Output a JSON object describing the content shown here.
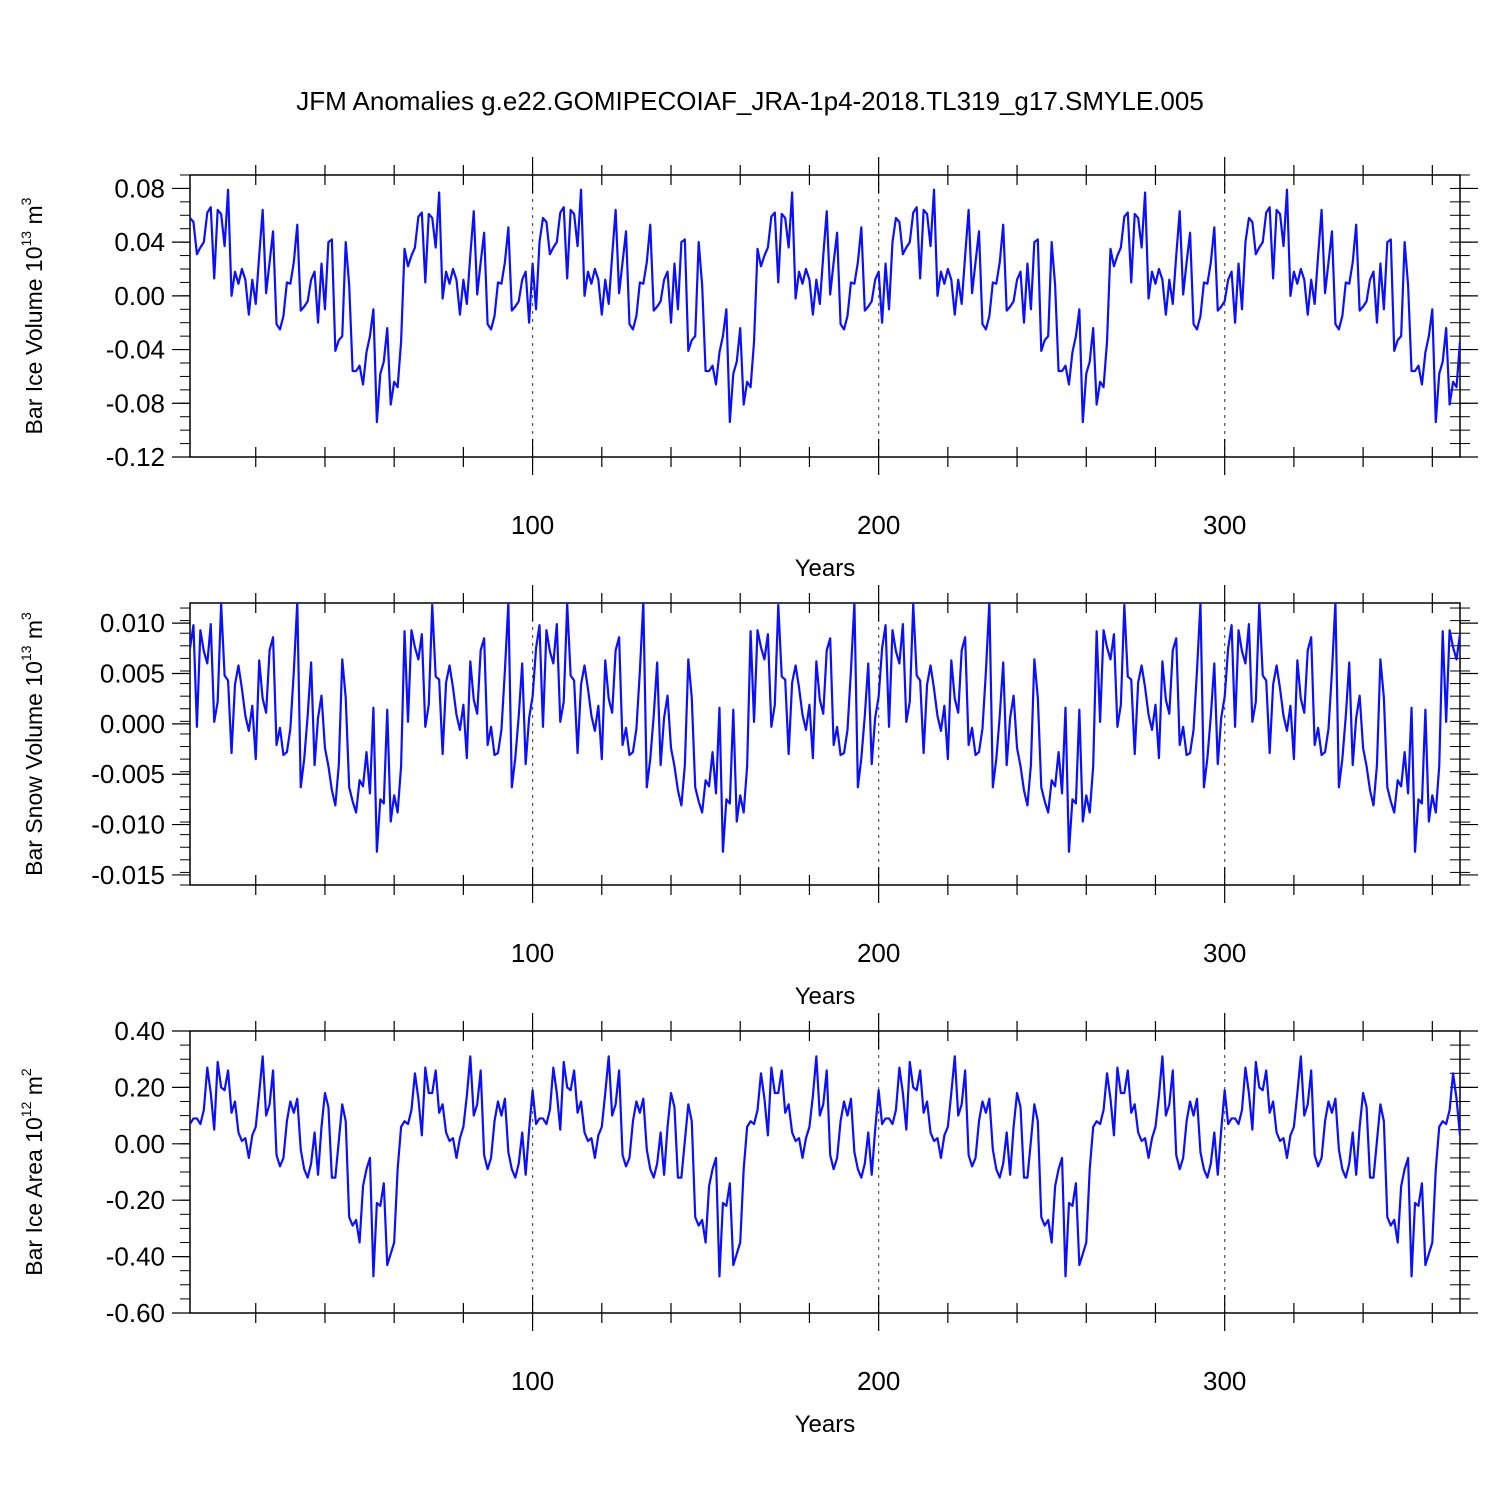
{
  "title": "JFM Anomalies g.e22.GOMIPECOIAF_JRA-1p4-2018.TL319_g17.SMYLE.005",
  "colors": {
    "line": "#0a10ff",
    "axis": "#000000",
    "refline": "#555555"
  },
  "chart_data": [
    {
      "type": "line",
      "name": "ice-volume",
      "ylabel": {
        "text": "Bar Ice Volume 10",
        "sup": "13",
        "unit": " m",
        "unit_sup": "3"
      },
      "xlabel": "Years",
      "xlim": [
        1,
        368
      ],
      "ylim": [
        -0.12,
        0.09
      ],
      "xticks": [
        100,
        200,
        300
      ],
      "xtick_labels": [
        "100",
        "200",
        "300"
      ],
      "yticks": [
        -0.12,
        -0.08,
        -0.04,
        0.0,
        0.04,
        0.08
      ],
      "ytick_labels": [
        "-0.12",
        "-0.08",
        "-0.04",
        "0.00",
        "0.04",
        "0.08"
      ],
      "refline_x": [
        100,
        200,
        300
      ],
      "cycle": [
        0.058,
        0.055,
        0.031,
        0.036,
        0.04,
        0.062,
        0.066,
        0.013,
        0.064,
        0.061,
        0.037,
        0.079,
        0.0,
        0.018,
        0.009,
        0.02,
        0.012,
        -0.014,
        0.012,
        -0.006,
        0.03,
        0.064,
        0.002,
        0.025,
        0.048,
        -0.021,
        -0.025,
        -0.015,
        0.01,
        0.009,
        0.025,
        0.053,
        -0.011,
        -0.008,
        -0.004,
        0.012,
        0.018,
        -0.02,
        0.024,
        -0.01,
        0.04,
        0.042,
        -0.041,
        -0.033,
        -0.03,
        0.04,
        0.008,
        -0.056,
        -0.056,
        -0.052,
        -0.066,
        -0.042,
        -0.03,
        -0.01,
        -0.094,
        -0.058,
        -0.049,
        -0.024,
        -0.081,
        -0.064,
        -0.068,
        -0.034,
        0.035,
        0.022,
        0.03,
        0.036,
        0.059,
        0.062,
        0.01,
        0.061,
        0.058,
        0.036,
        0.077,
        -0.002,
        0.018,
        0.009,
        0.02,
        0.012,
        -0.014,
        0.012,
        -0.006,
        0.03,
        0.063,
        0.001,
        0.025,
        0.047,
        -0.021,
        -0.025,
        -0.015,
        0.01,
        0.009,
        0.025,
        0.051,
        -0.011,
        -0.008,
        -0.004,
        0.012,
        0.018,
        -0.02,
        0.024,
        -0.01,
        0.04
      ],
      "values": []
    },
    {
      "type": "line",
      "name": "snow-volume",
      "ylabel": {
        "text": "Bar Snow Volume 10",
        "sup": "13",
        "unit": " m",
        "unit_sup": "3"
      },
      "xlabel": "Years",
      "xlim": [
        1,
        368
      ],
      "ylim": [
        -0.016,
        0.012
      ],
      "xticks": [
        100,
        200,
        300
      ],
      "xtick_labels": [
        "100",
        "200",
        "300"
      ],
      "yticks": [
        -0.015,
        -0.01,
        -0.005,
        0.0,
        0.005,
        0.01
      ],
      "ytick_labels": [
        "-0.015",
        "-0.010",
        "-0.005",
        "0.000",
        "0.005",
        "0.010"
      ],
      "refline_x": [
        100,
        200,
        300
      ],
      "cycle": [
        0.0075,
        0.0098,
        -0.0003,
        0.0093,
        0.0072,
        0.006,
        0.0099,
        0.0002,
        0.0022,
        0.0119,
        0.0048,
        0.0043,
        -0.0029,
        0.0039,
        0.0058,
        0.0035,
        0.0008,
        -0.0007,
        0.0018,
        -0.0035,
        0.0063,
        0.0025,
        0.0011,
        0.0073,
        0.0086,
        -0.0021,
        -0.0004,
        -0.0031,
        -0.0028,
        -0.0005,
        0.0052,
        0.0121,
        -0.0063,
        -0.0035,
        0.0008,
        0.0061,
        -0.0041,
        0.0006,
        0.0028,
        -0.0024,
        -0.0042,
        -0.0066,
        -0.0081,
        -0.0041,
        0.0064,
        0.0026,
        -0.0063,
        -0.0077,
        -0.0088,
        -0.0056,
        -0.0062,
        -0.0028,
        -0.0069,
        0.0016,
        -0.0127,
        -0.0075,
        -0.0079,
        0.0014,
        -0.0097,
        -0.0071,
        -0.0088,
        -0.0042,
        0.0092,
        0.0002,
        0.0093,
        0.0076,
        0.0064,
        0.0089,
        -0.0003,
        0.0019,
        0.0118,
        0.0047,
        0.0044,
        -0.003,
        0.0041,
        0.0058,
        0.0036,
        0.0009,
        -0.0006,
        0.0019,
        -0.0034,
        0.0062,
        0.0024,
        0.001,
        0.0073,
        0.0085,
        -0.0021,
        -0.0003,
        -0.0031,
        -0.0029,
        -0.0006,
        0.0053,
        0.012,
        -0.0063,
        -0.0034,
        0.0008,
        0.006,
        -0.004,
        0.0006,
        0.0027
      ],
      "values": []
    },
    {
      "type": "line",
      "name": "ice-area",
      "ylabel": {
        "text": "Bar Ice Area 10",
        "sup": "12",
        "unit": " m",
        "unit_sup": "2"
      },
      "xlabel": "Years",
      "xlim": [
        1,
        368
      ],
      "ylim": [
        -0.6,
        0.4
      ],
      "xticks": [
        100,
        200,
        300
      ],
      "xtick_labels": [
        "100",
        "200",
        "300"
      ],
      "yticks": [
        -0.6,
        -0.4,
        -0.2,
        0.0,
        0.2,
        0.4
      ],
      "ytick_labels": [
        "-0.60",
        "-0.40",
        "-0.20",
        "0.00",
        "0.20",
        "0.40"
      ],
      "refline_x": [
        100,
        200,
        300
      ],
      "cycle": [
        0.07,
        0.09,
        0.09,
        0.07,
        0.12,
        0.27,
        0.18,
        0.05,
        0.29,
        0.2,
        0.19,
        0.26,
        0.11,
        0.15,
        0.04,
        0.01,
        0.02,
        -0.05,
        0.03,
        0.06,
        0.18,
        0.31,
        0.1,
        0.14,
        0.26,
        -0.04,
        -0.08,
        -0.05,
        0.08,
        0.15,
        0.11,
        0.16,
        -0.02,
        -0.09,
        -0.12,
        -0.07,
        0.04,
        -0.11,
        0.06,
        0.18,
        0.13,
        -0.12,
        -0.12,
        0.01,
        0.14,
        0.08,
        -0.26,
        -0.29,
        -0.27,
        -0.35,
        -0.15,
        -0.09,
        -0.05,
        -0.47,
        -0.21,
        -0.22,
        -0.14,
        -0.43,
        -0.39,
        -0.35,
        -0.09,
        0.06,
        0.08,
        0.07,
        0.12,
        0.25,
        0.16,
        0.03,
        0.27,
        0.18,
        0.18,
        0.26,
        0.11,
        0.14,
        0.04,
        0.01,
        0.02,
        -0.05,
        0.02,
        0.06,
        0.17,
        0.31,
        0.1,
        0.14,
        0.26,
        -0.04,
        -0.09,
        -0.05,
        0.08,
        0.15,
        0.1,
        0.16,
        -0.03,
        -0.09,
        -0.12,
        -0.07,
        0.04,
        -0.11,
        0.05,
        0.19
      ],
      "values": []
    }
  ]
}
